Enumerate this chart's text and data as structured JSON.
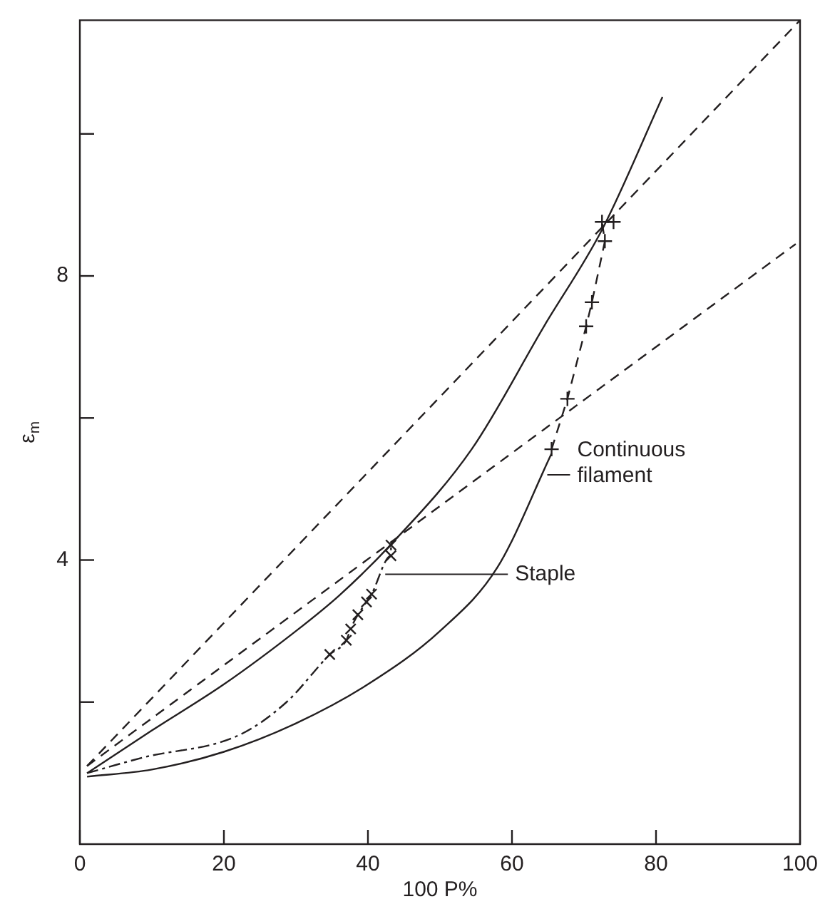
{
  "chart_data": {
    "type": "line",
    "xlabel": "100 P%",
    "ylabel": "ε$_{m}$",
    "xlim": [
      0,
      100
    ],
    "ylim": [
      0,
      11.6
    ],
    "xticks": [
      0,
      20,
      40,
      60,
      80,
      100
    ],
    "yticks": [
      {
        "value": 2,
        "label": null
      },
      4,
      {
        "value": 6,
        "label": null
      },
      8,
      {
        "value": 10,
        "label": null
      }
    ],
    "grid": false,
    "legend": false,
    "series": [
      {
        "color": "#231f20",
        "line_style": "dashed",
        "marker": "none",
        "x": [
          1,
          100
        ],
        "values": [
          1.1,
          11.6
        ]
      },
      {
        "color": "#231f20",
        "line_style": "dashed",
        "marker": "none",
        "x": [
          1,
          99.4
        ],
        "values": [
          1.1,
          8.45
        ]
      },
      {
        "color": "#231f20",
        "line_style": "solid",
        "marker": "none",
        "x": [
          1,
          10,
          20,
          30,
          36,
          43.2,
          54.4,
          64.5,
          72.5,
          80.9
        ],
        "values": [
          1.0,
          1.6,
          2.25,
          3.0,
          3.5,
          4.22,
          5.56,
          7.3,
          8.65,
          10.52
        ]
      },
      {
        "color": "#231f20",
        "line_style": "dashdot",
        "marker": "none",
        "x": [
          1,
          8.8,
          22,
          28.7,
          34.7,
          37,
          37.6,
          38.6,
          39.8,
          40.5,
          43.2,
          43.2
        ],
        "values": [
          1.0,
          1.22,
          1.53,
          2.0,
          2.67,
          2.87,
          3.03,
          3.23,
          3.41,
          3.52,
          4.06,
          4.21
        ]
      },
      {
        "type": "scatter",
        "color": "#231f20",
        "marker": "x",
        "x": [
          34.7,
          37,
          37.6,
          38.6,
          39.8,
          40.5,
          43.2,
          43.2
        ],
        "values": [
          2.67,
          2.87,
          3.03,
          3.23,
          3.41,
          3.52,
          4.06,
          4.21
        ]
      },
      {
        "color": "#231f20",
        "line_style": "solid",
        "marker": "none",
        "x": [
          1,
          10,
          20,
          30,
          40,
          50,
          58,
          65.5
        ],
        "values": [
          0.95,
          1.05,
          1.3,
          1.7,
          2.25,
          3.0,
          3.9,
          5.5
        ]
      },
      {
        "color": "#231f20",
        "line_style": "dashed",
        "marker": "cross",
        "x": [
          65.5,
          67.7,
          70.3,
          71.1,
          72.9,
          72.5,
          74.1
        ],
        "values": [
          5.56,
          6.27,
          7.29,
          7.63,
          8.49,
          8.76,
          8.76
        ]
      }
    ],
    "annotations": [
      {
        "text": "Staple",
        "x": 42.4,
        "y": 3.8
      },
      {
        "text": "Continuous\nfilament",
        "x": 64.9,
        "y": 5.2
      }
    ]
  }
}
